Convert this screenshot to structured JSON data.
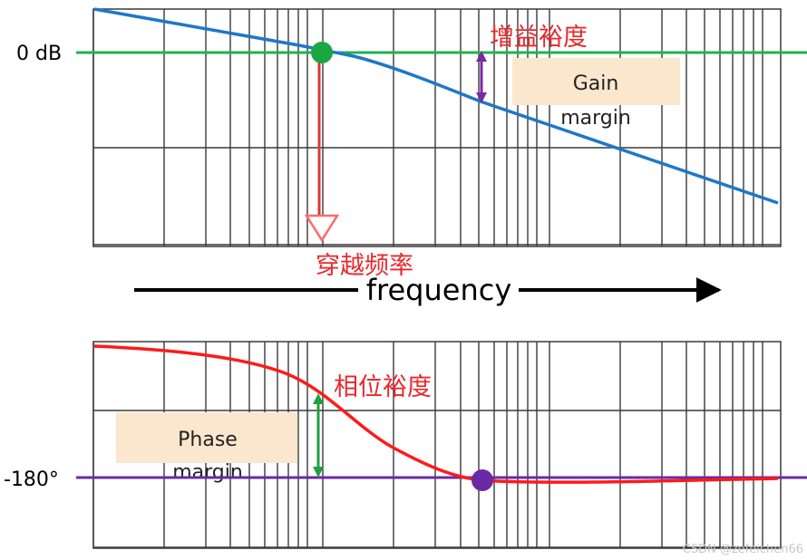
{
  "magnitude": {
    "ref_label": "0 dB",
    "gain_margin_cn": "增益裕度",
    "gain_margin_box": [
      "Gain",
      "margin"
    ],
    "crossover_cn": "穿越频率",
    "colors": {
      "ref_line": "#22b14c",
      "curve": "#1f77c9",
      "crossing_dot": "#1aa640",
      "crossover_arrow": "#d63a3a",
      "gain_arrow": "#7a2aa0"
    }
  },
  "frequency_axis": {
    "label": "frequency"
  },
  "phase": {
    "ref_label": "-180°",
    "phase_margin_cn": "相位裕度",
    "phase_margin_box": [
      "Phase",
      "margin"
    ],
    "colors": {
      "ref_line": "#6a2aa6",
      "curve": "#ff1a1a",
      "crossing_dot": "#6a2aa6",
      "phase_arrow": "#22a040"
    }
  },
  "watermark": "CSDN @zefeichen66",
  "colors": {
    "grid": "#3a3a3a",
    "annotation_cn": "#e8282c",
    "box_fill": "#fbe7cd"
  }
}
